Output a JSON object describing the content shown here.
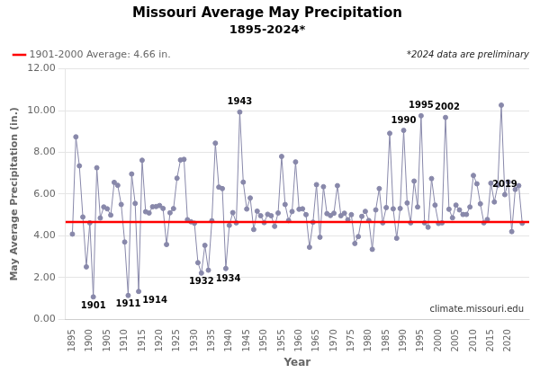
{
  "chart_data": {
    "type": "line",
    "title": "Missouri Average May Precipitation",
    "subtitle": "1895-2024*",
    "xlabel": "Year",
    "ylabel": "May Average Precipitation (in.)",
    "x": [
      1895,
      1896,
      1897,
      1898,
      1899,
      1900,
      1901,
      1902,
      1903,
      1904,
      1905,
      1906,
      1907,
      1908,
      1909,
      1910,
      1911,
      1912,
      1913,
      1914,
      1915,
      1916,
      1917,
      1918,
      1919,
      1920,
      1921,
      1922,
      1923,
      1924,
      1925,
      1926,
      1927,
      1928,
      1929,
      1930,
      1931,
      1932,
      1933,
      1934,
      1935,
      1936,
      1937,
      1938,
      1939,
      1940,
      1941,
      1942,
      1943,
      1944,
      1945,
      1946,
      1947,
      1948,
      1949,
      1950,
      1951,
      1952,
      1953,
      1954,
      1955,
      1956,
      1957,
      1958,
      1959,
      1960,
      1961,
      1962,
      1963,
      1964,
      1965,
      1966,
      1967,
      1968,
      1969,
      1970,
      1971,
      1972,
      1973,
      1974,
      1975,
      1976,
      1977,
      1978,
      1979,
      1980,
      1981,
      1982,
      1983,
      1984,
      1985,
      1986,
      1987,
      1988,
      1989,
      1990,
      1991,
      1992,
      1993,
      1994,
      1995,
      1996,
      1997,
      1998,
      1999,
      2000,
      2001,
      2002,
      2003,
      2004,
      2005,
      2006,
      2007,
      2008,
      2009,
      2010,
      2011,
      2012,
      2013,
      2014,
      2015,
      2016,
      2017,
      2018,
      2019,
      2020,
      2021,
      2022,
      2023,
      2024
    ],
    "values": [
      4.08,
      8.74,
      7.35,
      4.9,
      2.51,
      4.62,
      1.07,
      7.26,
      4.85,
      5.38,
      5.29,
      4.99,
      6.56,
      6.42,
      5.5,
      3.7,
      1.14,
      6.96,
      5.55,
      1.33,
      7.62,
      5.15,
      5.09,
      5.39,
      5.4,
      5.45,
      5.31,
      3.58,
      5.1,
      5.3,
      6.76,
      7.63,
      7.66,
      4.77,
      4.67,
      4.6,
      2.71,
      2.21,
      3.54,
      2.35,
      4.72,
      8.44,
      6.33,
      6.26,
      2.43,
      4.5,
      5.11,
      4.62,
      9.93,
      6.57,
      5.28,
      5.81,
      4.3,
      5.18,
      4.96,
      4.63,
      5.03,
      4.96,
      4.45,
      5.09,
      7.8,
      5.5,
      4.73,
      5.16,
      7.54,
      5.27,
      5.29,
      5.01,
      3.45,
      4.65,
      6.45,
      3.93,
      6.35,
      5.06,
      4.97,
      5.08,
      6.4,
      4.96,
      5.08,
      4.77,
      5.01,
      3.63,
      3.96,
      4.93,
      5.17,
      4.73,
      3.35,
      5.24,
      6.26,
      4.62,
      5.35,
      8.91,
      5.29,
      3.88,
      5.31,
      9.05,
      5.57,
      4.62,
      6.62,
      5.38,
      9.75,
      4.62,
      4.41,
      6.74,
      5.47,
      4.59,
      4.62,
      9.67,
      5.27,
      4.86,
      5.47,
      5.24,
      5.02,
      5.02,
      5.38,
      6.89,
      6.49,
      5.53,
      4.62,
      4.78,
      6.52,
      5.62,
      6.43,
      10.26,
      5.97,
      6.58,
      4.2,
      6.22,
      6.4,
      4.6
    ],
    "color": "#8888AA",
    "marker": "circle",
    "xlim": [
      1893,
      2026
    ],
    "xticks": [
      1895,
      1900,
      1905,
      1910,
      1915,
      1920,
      1925,
      1930,
      1935,
      1940,
      1945,
      1950,
      1955,
      1960,
      1965,
      1970,
      1975,
      1980,
      1985,
      1990,
      1995,
      2000,
      2005,
      2010,
      2015,
      2020
    ],
    "ylim": [
      0,
      12
    ],
    "yticks": [
      {
        "value": 0,
        "label": "0.00"
      },
      {
        "value": 2,
        "label": "2.00"
      },
      {
        "value": 4,
        "label": "4.00"
      },
      {
        "value": 6,
        "label": "6.00"
      },
      {
        "value": 8,
        "label": "8.00"
      },
      {
        "value": 10,
        "label": "10.00"
      },
      {
        "value": 12,
        "label": "12.00"
      }
    ],
    "grid": "y",
    "legend": "upper left",
    "reference_lines": [
      {
        "name": "1901-2000 Average: 4.66 in.",
        "y": 4.66,
        "color": "#FF0000"
      }
    ],
    "annotations": [
      {
        "text": "1901",
        "x": 1901,
        "y": 1.07,
        "position": "below"
      },
      {
        "text": "1911",
        "x": 1911,
        "y": 1.14,
        "position": "below"
      },
      {
        "text": "1914",
        "x": 1914,
        "y": 1.33,
        "position": "below"
      },
      {
        "text": "1932",
        "x": 1932,
        "y": 2.21,
        "position": "below"
      },
      {
        "text": "1934",
        "x": 1934,
        "y": 2.35,
        "position": "below"
      },
      {
        "text": "1943",
        "x": 1943,
        "y": 9.93,
        "position": "above"
      },
      {
        "text": "1990",
        "x": 1990,
        "y": 9.05,
        "position": "above"
      },
      {
        "text": "1995",
        "x": 1995,
        "y": 9.75,
        "position": "above"
      },
      {
        "text": "2002",
        "x": 2002,
        "y": 9.67,
        "position": "above"
      },
      {
        "text": "2019",
        "x": 2019,
        "y": 5.97,
        "position": "above"
      },
      {
        "text": "*2024 data are preliminary",
        "position": "top right"
      },
      {
        "text": "climate.missouri.edu",
        "position": "bottom right"
      }
    ]
  }
}
